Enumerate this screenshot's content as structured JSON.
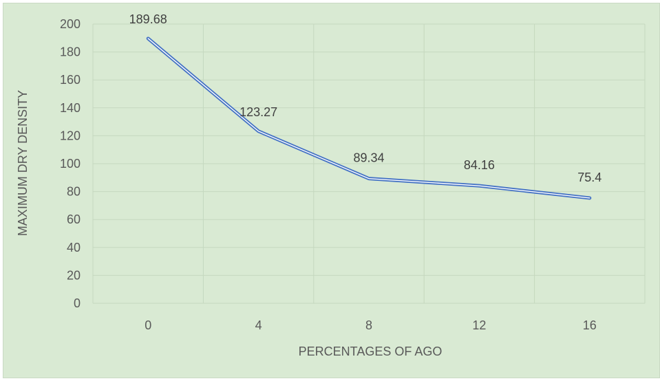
{
  "chart_data": {
    "type": "line",
    "title": "",
    "xlabel": "PERCENTAGES OF AGO",
    "ylabel": "MAXIMUM DRY DENSITY",
    "categories": [
      "0",
      "4",
      "8",
      "12",
      "16"
    ],
    "series": [
      {
        "values": [
          189.68,
          123.27,
          89.34,
          84.16,
          75.4
        ]
      }
    ],
    "data_labels": [
      "189.68",
      "123.27",
      "89.34",
      "84.16",
      "75.4"
    ],
    "ylim": [
      0,
      200
    ],
    "yticks": [
      "0",
      "20",
      "40",
      "60",
      "80",
      "100",
      "120",
      "140",
      "160",
      "180",
      "200"
    ],
    "grid": true,
    "legend": "none",
    "colors": {
      "background": "#d9ead3",
      "line": "#4472c4",
      "grid": "#c5d8bf",
      "text": "#595959"
    }
  }
}
